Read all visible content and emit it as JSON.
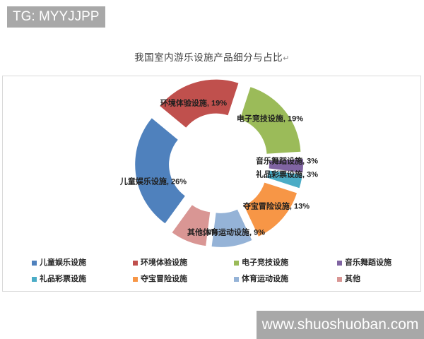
{
  "header": {
    "badge_label": "TG: MYYJJPP"
  },
  "footer": {
    "watermark": "www.shuoshuoban.com"
  },
  "chart_data": {
    "type": "pie",
    "variant": "exploded-doughnut",
    "title": "我国室内游乐设施产品细分与占比",
    "title_mark": "↵",
    "unit": "%",
    "data_label_format": "{label}, {value}%",
    "slices": [
      {
        "label": "儿童娱乐设施",
        "value": 26,
        "color": "#4F81BD"
      },
      {
        "label": "环境体验设施",
        "value": 19,
        "color": "#C0504D"
      },
      {
        "label": "电子竞技设施",
        "value": 19,
        "color": "#9BBB59"
      },
      {
        "label": "音乐舞蹈设施",
        "value": 3,
        "color": "#8064A2"
      },
      {
        "label": "礼品彩票设施",
        "value": 3,
        "color": "#4BACC6"
      },
      {
        "label": "夺宝冒险设施",
        "value": 13,
        "color": "#F79646"
      },
      {
        "label": "体育运动设施",
        "value": 9,
        "color": "#95B3D7"
      },
      {
        "label": "其他",
        "value": 8,
        "color": "#D99694"
      }
    ],
    "legend": {
      "position": "bottom",
      "rows": [
        [
          "儿童娱乐设施",
          "环境体验设施",
          "电子竞技设施",
          "音乐舞蹈设施"
        ],
        [
          "礼品彩票设施",
          "夺宝冒险设施",
          "体育运动设施",
          "其他"
        ]
      ]
    }
  }
}
